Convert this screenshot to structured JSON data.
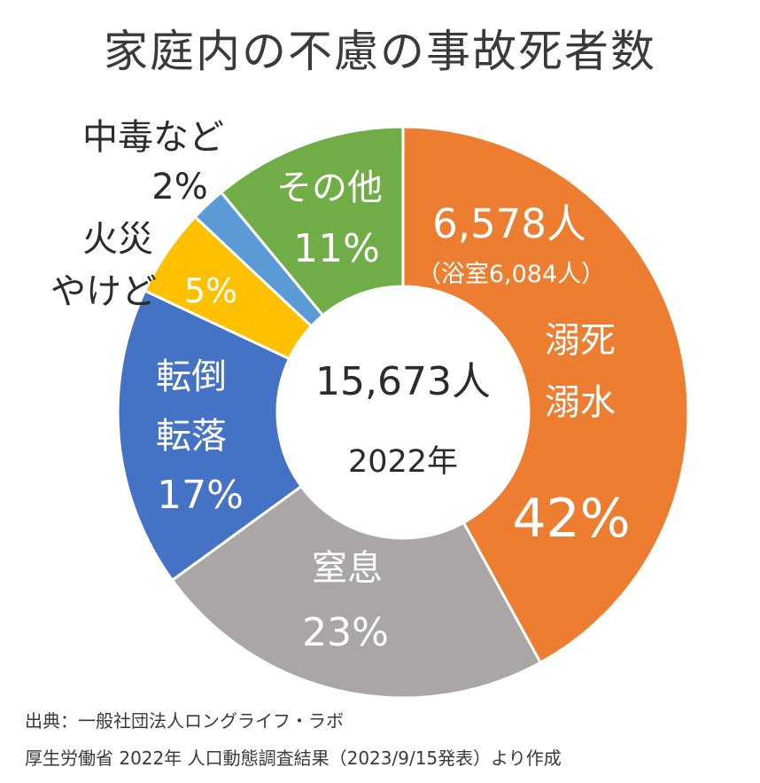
{
  "chart_data": {
    "type": "donut",
    "title": "家庭内の不慮の事故死者数",
    "center_total": "15,673人",
    "center_year": "2022年",
    "slices": [
      {
        "label_lines": [
          "溺死",
          "溺水"
        ],
        "percent_label": "42%",
        "value": 42,
        "color": "#ED7D31",
        "extra_lines": [
          "6,578人",
          "（浴室6,084人）"
        ]
      },
      {
        "label_lines": [
          "窒息"
        ],
        "percent_label": "23%",
        "value": 23,
        "color": "#A9A6A5"
      },
      {
        "label_lines": [
          "転倒",
          "転落"
        ],
        "percent_label": "17%",
        "value": 17,
        "color": "#4472C4"
      },
      {
        "label_lines": [
          "火災",
          "やけど"
        ],
        "percent_label": "5%",
        "value": 5,
        "color": "#FFC000"
      },
      {
        "label_lines": [
          "中毒など"
        ],
        "percent_label": "2%",
        "value": 2,
        "color": "#5B9BD5"
      },
      {
        "label_lines": [
          "その他"
        ],
        "percent_label": "11%",
        "value": 11,
        "color": "#70AD47"
      }
    ]
  },
  "footer": {
    "source_line": "出典：一般社団法人ロングライフ・ラボ",
    "note_line": "厚生労働省 2022年 人口動態調査結果（2023/9/15発表）より作成"
  }
}
